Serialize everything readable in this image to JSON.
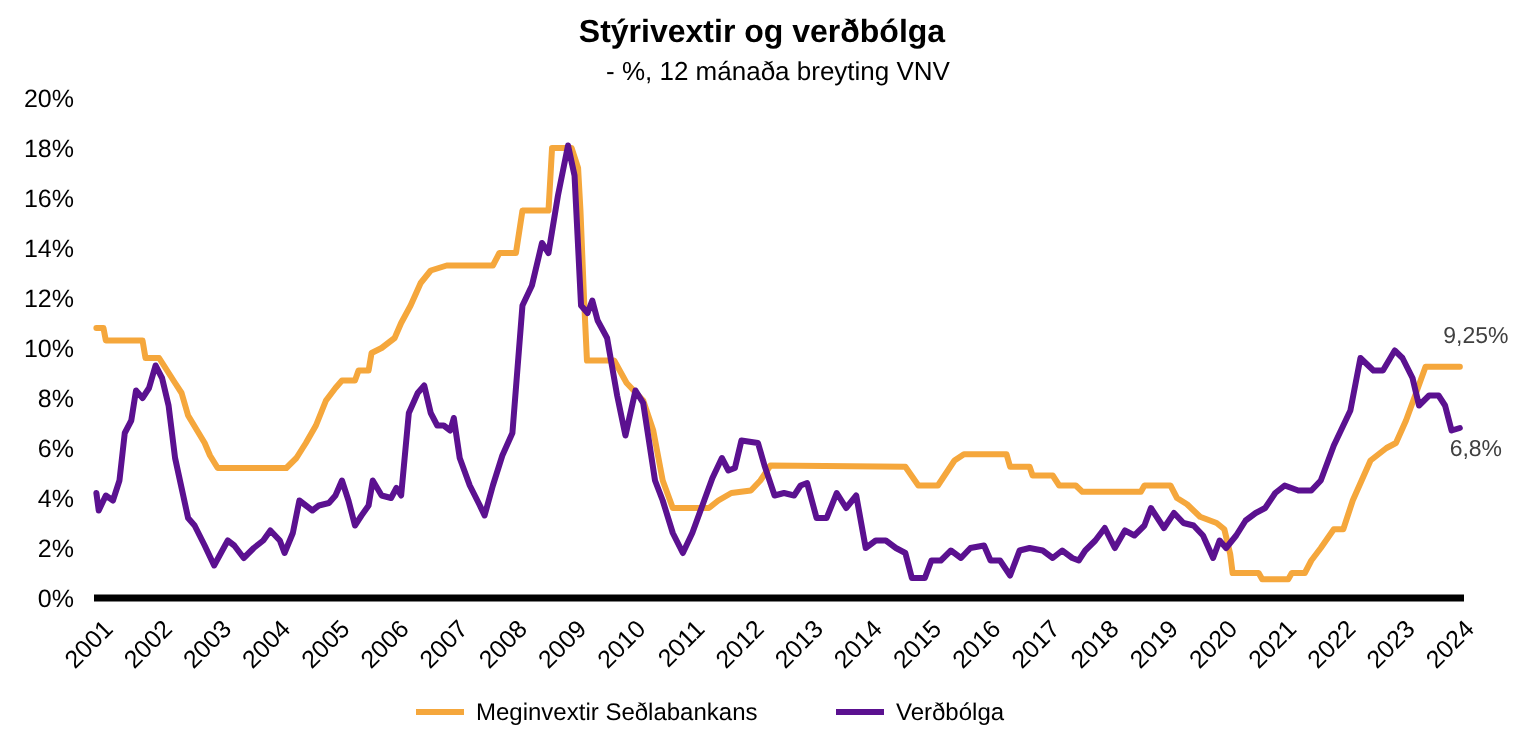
{
  "chart_data": {
    "type": "line",
    "title": "Stýrivextir og verðbólga",
    "subtitle": "- %, 12 mánaða breyting VNV",
    "xlim": [
      2001,
      2024.15
    ],
    "xticks": [
      2001,
      2002,
      2003,
      2004,
      2005,
      2006,
      2007,
      2008,
      2009,
      2010,
      2011,
      2012,
      2013,
      2014,
      2015,
      2016,
      2017,
      2018,
      2019,
      2020,
      2021,
      2022,
      2023,
      2024
    ],
    "ylim": [
      0,
      20
    ],
    "yticks": [
      {
        "value": 0,
        "label": "0%"
      },
      {
        "value": 2,
        "label": "2%"
      },
      {
        "value": 4,
        "label": "4%"
      },
      {
        "value": 6,
        "label": "6%"
      },
      {
        "value": 8,
        "label": "8%"
      },
      {
        "value": 10,
        "label": "10%"
      },
      {
        "value": 12,
        "label": "12%"
      },
      {
        "value": 14,
        "label": "14%"
      },
      {
        "value": 16,
        "label": "16%"
      },
      {
        "value": 18,
        "label": "18%"
      },
      {
        "value": 20,
        "label": "20%"
      }
    ],
    "grid": false,
    "legend": "bottom",
    "line_style": "solid",
    "series": [
      {
        "name": "Meginvextir Seðlabankans",
        "color": "#f5a73c",
        "x": [
          2001.04,
          2001.16,
          2001.2,
          2001.82,
          2001.87,
          2002.1,
          2002.37,
          2002.48,
          2002.59,
          2002.87,
          2002.96,
          2003.09,
          2004.25,
          2004.42,
          2004.58,
          2004.75,
          2004.92,
          2005.08,
          2005.19,
          2005.41,
          2005.47,
          2005.64,
          2005.69,
          2005.86,
          2006.08,
          2006.19,
          2006.35,
          2006.52,
          2006.69,
          2006.96,
          2007.74,
          2007.85,
          2008.13,
          2008.24,
          2008.68,
          2008.74,
          2009.07,
          2009.18,
          2009.22,
          2009.28,
          2009.33,
          2009.79,
          2010.0,
          2010.28,
          2010.45,
          2010.61,
          2010.78,
          2010.95,
          2011.39,
          2011.55,
          2011.77,
          2012.1,
          2012.26,
          2012.43,
          2014.71,
          2014.93,
          2015.26,
          2015.54,
          2015.7,
          2016.42,
          2016.48,
          2016.81,
          2016.86,
          2017.2,
          2017.31,
          2017.59,
          2017.7,
          2018.69,
          2018.75,
          2019.19,
          2019.3,
          2019.47,
          2019.69,
          2019.97,
          2020.1,
          2020.2,
          2020.24,
          2020.68,
          2020.74,
          2021.18,
          2021.24,
          2021.46,
          2021.57,
          2021.73,
          2021.95,
          2022.11,
          2022.27,
          2022.57,
          2022.84,
          2023.0,
          2023.17,
          2023.34,
          2023.5,
          2024.08
        ],
        "values": [
          10.8,
          10.8,
          10.3,
          10.3,
          9.6,
          9.6,
          8.6,
          8.2,
          7.3,
          6.2,
          5.7,
          5.2,
          5.2,
          5.6,
          6.2,
          6.9,
          7.9,
          8.4,
          8.7,
          8.7,
          9.1,
          9.1,
          9.8,
          10.0,
          10.4,
          11.0,
          11.7,
          12.6,
          13.1,
          13.3,
          13.3,
          13.8,
          13.8,
          15.5,
          15.5,
          18.0,
          18.0,
          17.2,
          15.5,
          12.0,
          9.5,
          9.5,
          8.6,
          7.9,
          6.7,
          4.7,
          3.6,
          3.6,
          3.6,
          3.9,
          4.2,
          4.3,
          4.7,
          5.3,
          5.25,
          4.5,
          4.5,
          5.5,
          5.75,
          5.75,
          5.25,
          5.25,
          4.9,
          4.9,
          4.5,
          4.5,
          4.25,
          4.25,
          4.5,
          4.5,
          4.0,
          3.75,
          3.25,
          3.0,
          2.75,
          1.75,
          1.0,
          1.0,
          0.75,
          0.75,
          1.0,
          1.0,
          1.5,
          2.0,
          2.75,
          2.75,
          3.9,
          5.5,
          6.0,
          6.2,
          7.1,
          8.2,
          9.25,
          9.25
        ]
      },
      {
        "name": "Verðbólga",
        "color": "#5b1190",
        "x": [
          2001.04,
          2001.08,
          2001.2,
          2001.32,
          2001.43,
          2001.52,
          2001.63,
          2001.71,
          2001.82,
          2001.93,
          2002.04,
          2002.15,
          2002.26,
          2002.37,
          2002.48,
          2002.59,
          2002.7,
          2002.87,
          2003.03,
          2003.26,
          2003.37,
          2003.53,
          2003.7,
          2003.86,
          2003.98,
          2004.14,
          2004.22,
          2004.36,
          2004.47,
          2004.58,
          2004.69,
          2004.8,
          2004.97,
          2005.08,
          2005.19,
          2005.3,
          2005.41,
          2005.52,
          2005.64,
          2005.71,
          2005.86,
          2006.02,
          2006.11,
          2006.19,
          2006.32,
          2006.47,
          2006.58,
          2006.69,
          2006.8,
          2006.91,
          2007.02,
          2007.08,
          2007.18,
          2007.35,
          2007.52,
          2007.6,
          2007.74,
          2007.9,
          2008.07,
          2008.24,
          2008.4,
          2008.57,
          2008.68,
          2008.84,
          2009.01,
          2009.12,
          2009.23,
          2009.34,
          2009.42,
          2009.51,
          2009.67,
          2009.84,
          2009.98,
          2010.15,
          2010.28,
          2010.48,
          2010.61,
          2010.78,
          2010.95,
          2011.11,
          2011.28,
          2011.45,
          2011.61,
          2011.72,
          2011.83,
          2011.94,
          2012.22,
          2012.33,
          2012.5,
          2012.66,
          2012.83,
          2012.94,
          2013.05,
          2013.21,
          2013.38,
          2013.55,
          2013.71,
          2013.88,
          2014.04,
          2014.21,
          2014.38,
          2014.55,
          2014.71,
          2014.82,
          2015.04,
          2015.15,
          2015.31,
          2015.48,
          2015.65,
          2015.81,
          2016.04,
          2016.15,
          2016.31,
          2016.48,
          2016.64,
          2016.81,
          2017.03,
          2017.2,
          2017.36,
          2017.53,
          2017.64,
          2017.75,
          2017.92,
          2018.08,
          2018.25,
          2018.42,
          2018.58,
          2018.75,
          2018.86,
          2019.08,
          2019.25,
          2019.41,
          2019.58,
          2019.74,
          2019.91,
          2020.02,
          2020.13,
          2020.3,
          2020.46,
          2020.63,
          2020.79,
          2020.96,
          2021.12,
          2021.35,
          2021.57,
          2021.73,
          2021.95,
          2022.23,
          2022.4,
          2022.62,
          2022.78,
          2022.98,
          2023.11,
          2023.28,
          2023.39,
          2023.56,
          2023.72,
          2023.83,
          2023.94,
          2024.08
        ],
        "values": [
          4.2,
          3.5,
          4.1,
          3.9,
          4.7,
          6.6,
          7.1,
          8.3,
          8.0,
          8.4,
          9.3,
          8.8,
          7.7,
          5.6,
          4.4,
          3.2,
          2.9,
          2.1,
          1.3,
          2.3,
          2.1,
          1.6,
          2.0,
          2.3,
          2.7,
          2.3,
          1.8,
          2.6,
          3.9,
          3.7,
          3.5,
          3.7,
          3.8,
          4.1,
          4.7,
          3.9,
          2.9,
          3.3,
          3.7,
          4.7,
          4.1,
          4.0,
          4.4,
          4.1,
          7.4,
          8.2,
          8.5,
          7.4,
          6.9,
          6.9,
          6.7,
          7.2,
          5.6,
          4.5,
          3.7,
          3.3,
          4.5,
          5.7,
          6.6,
          11.7,
          12.5,
          14.2,
          13.8,
          16.1,
          18.1,
          16.9,
          11.7,
          11.4,
          11.9,
          11.1,
          10.4,
          8.1,
          6.5,
          8.3,
          7.8,
          4.7,
          3.9,
          2.6,
          1.8,
          2.6,
          3.7,
          4.8,
          5.6,
          5.1,
          5.2,
          6.3,
          6.2,
          5.3,
          4.1,
          4.2,
          4.1,
          4.5,
          4.6,
          3.2,
          3.2,
          4.2,
          3.6,
          4.1,
          2.0,
          2.3,
          2.3,
          2.0,
          1.8,
          0.8,
          0.8,
          1.5,
          1.5,
          1.9,
          1.6,
          2.0,
          2.1,
          1.5,
          1.5,
          0.9,
          1.9,
          2.0,
          1.9,
          1.6,
          1.9,
          1.6,
          1.5,
          1.9,
          2.3,
          2.8,
          2.0,
          2.7,
          2.5,
          2.9,
          3.6,
          2.8,
          3.4,
          3.0,
          2.9,
          2.5,
          1.6,
          2.3,
          2.0,
          2.5,
          3.1,
          3.4,
          3.6,
          4.2,
          4.5,
          4.3,
          4.3,
          4.7,
          6.1,
          7.5,
          9.6,
          9.1,
          9.1,
          9.9,
          9.6,
          8.8,
          7.7,
          8.1,
          8.1,
          7.7,
          6.7,
          6.8
        ]
      }
    ],
    "annotations": [
      {
        "text": "9,25%",
        "x": 2024.08,
        "y": 9.25
      },
      {
        "text": "6,8%",
        "x": 2024.08,
        "y": 6.8
      }
    ]
  }
}
